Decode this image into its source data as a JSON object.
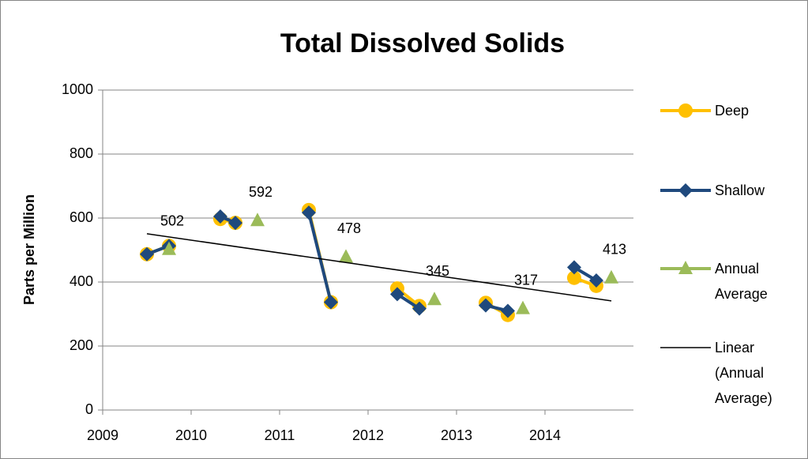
{
  "chart_data": {
    "type": "line",
    "title": "Total Dissolved Solids",
    "y_label": "Parts per Million",
    "xlim": [
      2009,
      2015
    ],
    "xticks": [
      2009,
      2010,
      2011,
      2012,
      2013,
      2014
    ],
    "ylim": [
      0,
      1000
    ],
    "yticks": [
      0,
      200,
      400,
      600,
      800,
      1000
    ],
    "grid": true,
    "series": [
      {
        "name": "Deep",
        "color": "#FFC000",
        "marker": "circle",
        "x": [
          2009.5,
          2009.75,
          2010.33,
          2010.5,
          2011.33,
          2011.58,
          2012.33,
          2012.58,
          2013.33,
          2013.58,
          2014.33,
          2014.58
        ],
        "values": [
          487,
          513,
          597,
          585,
          625,
          337,
          380,
          325,
          335,
          297,
          413,
          388
        ]
      },
      {
        "name": "Shallow",
        "color": "#1F497D",
        "marker": "diamond",
        "x": [
          2009.5,
          2009.75,
          2010.33,
          2010.5,
          2011.33,
          2011.58,
          2012.33,
          2012.58,
          2013.33,
          2013.58,
          2014.33,
          2014.58
        ],
        "values": [
          487,
          513,
          605,
          585,
          617,
          337,
          362,
          317,
          327,
          310,
          446,
          405
        ]
      },
      {
        "name": "Annual Average",
        "color": "#9BBB59",
        "marker": "triangle",
        "x": [
          2009.75,
          2010.75,
          2011.75,
          2012.75,
          2013.75,
          2014.75
        ],
        "values": [
          502,
          592,
          478,
          345,
          317,
          413
        ]
      },
      {
        "name": "Linear (Annual Average)",
        "color": "#000000",
        "marker": "none",
        "x": [
          2009.5,
          2014.75
        ],
        "values": [
          551,
          341
        ]
      }
    ]
  }
}
